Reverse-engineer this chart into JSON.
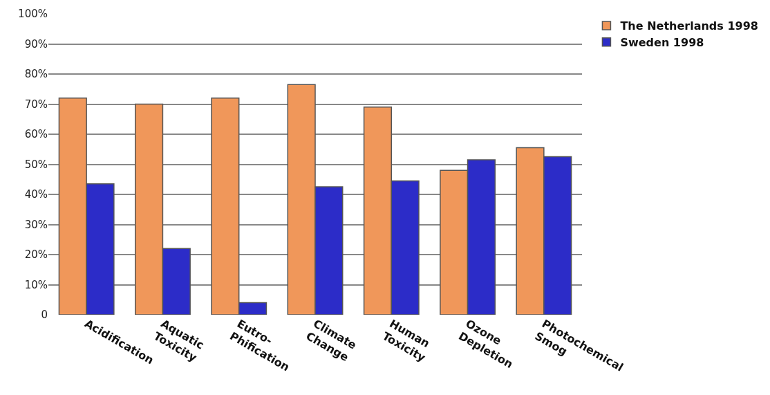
{
  "chart_data": {
    "type": "bar",
    "categories": [
      "Acidification",
      "Aquatic\nToxicity",
      "Eutro-\nPhification",
      "Climate\nChange",
      "Human\nToxicity",
      "Ozone\nDepletion",
      "Photochemical\nSmog"
    ],
    "series": [
      {
        "name": "The Netherlands 1998",
        "color": "#f0975a",
        "values": [
          72,
          70,
          72,
          76.5,
          69,
          48,
          55.5
        ]
      },
      {
        "name": "Sweden 1998",
        "color": "#2c2cc8",
        "values": [
          43.5,
          22,
          4,
          42.5,
          44.5,
          51.5,
          52.5
        ]
      }
    ],
    "ylim": [
      0,
      100
    ],
    "yticks": [
      {
        "value": 0,
        "label": "0"
      },
      {
        "value": 10,
        "label": "10%"
      },
      {
        "value": 20,
        "label": "20%"
      },
      {
        "value": 30,
        "label": "30%"
      },
      {
        "value": 40,
        "label": "40%"
      },
      {
        "value": 50,
        "label": "50%"
      },
      {
        "value": 60,
        "label": "60%"
      },
      {
        "value": 70,
        "label": "70%"
      },
      {
        "value": 80,
        "label": "80%"
      },
      {
        "value": 90,
        "label": "90%"
      },
      {
        "value": 100,
        "label": "100%"
      }
    ],
    "grid": "y",
    "legend": "top right"
  }
}
